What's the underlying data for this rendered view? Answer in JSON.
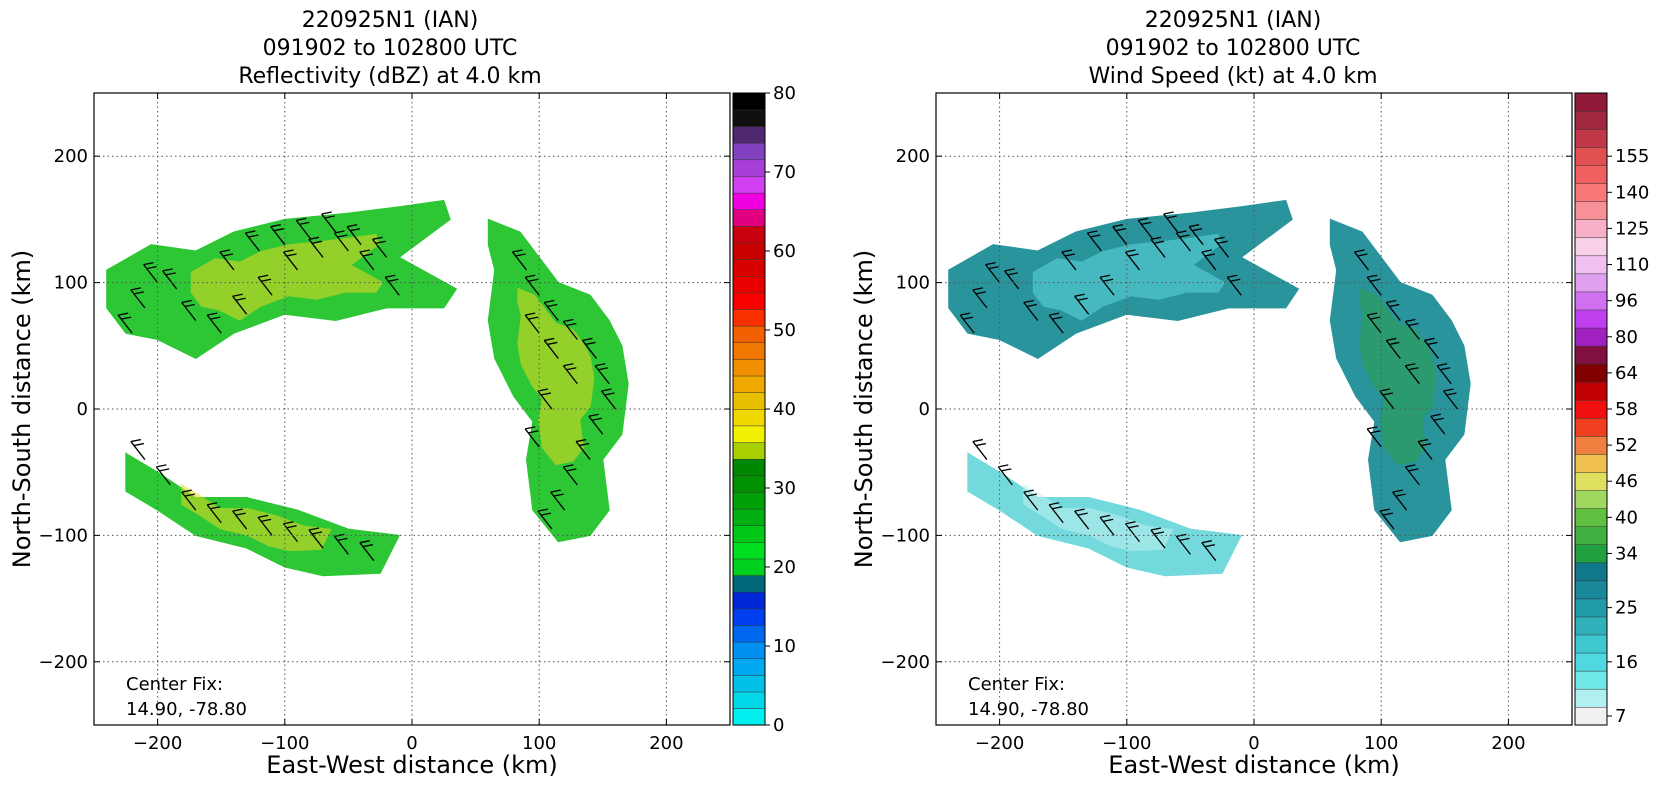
{
  "chart_data": [
    {
      "type": "heatmap",
      "title": [
        "220925N1 (IAN)",
        "091902 to 102800 UTC",
        "Reflectivity (dBZ) at 4.0 km"
      ],
      "xlabel": "East-West distance (km)",
      "ylabel": "North-South distance (km)",
      "xlim": [
        -250,
        250
      ],
      "ylim": [
        -250,
        250
      ],
      "xticks": [
        -200,
        -100,
        0,
        100,
        200
      ],
      "yticks": [
        -200,
        -100,
        0,
        100,
        200
      ],
      "xtick_labels": [
        "−200",
        "−100",
        "0",
        "100",
        "200"
      ],
      "ytick_labels": [
        "−200",
        "−100",
        "0",
        "100",
        "200"
      ],
      "grid": true,
      "annotation": [
        "Center Fix:",
        "14.90, -78.80"
      ],
      "colorbar": {
        "min": 0,
        "max": 80,
        "step": 2.5,
        "tick_values": [
          0,
          10,
          20,
          30,
          40,
          50,
          60,
          70,
          80
        ],
        "tick_labels": [
          "0",
          "10",
          "20",
          "30",
          "40",
          "50",
          "60",
          "70",
          "80"
        ],
        "colors": [
          "#00f0f0",
          "#00d8e8",
          "#00c0e8",
          "#00a8f0",
          "#0090f0",
          "#0068f0",
          "#0040f0",
          "#0028d8",
          "#006878",
          "#00d020",
          "#00e020",
          "#00c818",
          "#00b010",
          "#00a008",
          "#009000",
          "#008800",
          "#a8d000",
          "#f0f000",
          "#f0d800",
          "#e8c000",
          "#f0a800",
          "#f09000",
          "#f07800",
          "#f06000",
          "#f83000",
          "#f80000",
          "#e80000",
          "#d80000",
          "#c80000",
          "#c80010",
          "#e00080",
          "#f000e0",
          "#d040f0",
          "#a840d8",
          "#8040c0",
          "#502870",
          "#101010",
          "#000000"
        ]
      },
      "echo_regions": [
        {
          "name": "north band",
          "poly": [
            [
              -240,
              110
            ],
            [
              -205,
              130
            ],
            [
              -170,
              125
            ],
            [
              -140,
              140
            ],
            [
              -100,
              150
            ],
            [
              -50,
              155
            ],
            [
              -10,
              160
            ],
            [
              25,
              165
            ],
            [
              30,
              150
            ],
            [
              10,
              135
            ],
            [
              -10,
              120
            ],
            [
              35,
              95
            ],
            [
              25,
              80
            ],
            [
              -20,
              80
            ],
            [
              -60,
              70
            ],
            [
              -100,
              75
            ],
            [
              -140,
              60
            ],
            [
              -170,
              40
            ],
            [
              -200,
              55
            ],
            [
              -225,
              60
            ],
            [
              -240,
              80
            ]
          ],
          "fill": "#22c42a",
          "hot": "#e8d820"
        },
        {
          "name": "east band",
          "poly": [
            [
              60,
              150
            ],
            [
              85,
              140
            ],
            [
              100,
              120
            ],
            [
              115,
              100
            ],
            [
              140,
              90
            ],
            [
              155,
              70
            ],
            [
              165,
              50
            ],
            [
              170,
              20
            ],
            [
              165,
              -20
            ],
            [
              150,
              -40
            ],
            [
              155,
              -80
            ],
            [
              140,
              -100
            ],
            [
              115,
              -105
            ],
            [
              95,
              -80
            ],
            [
              90,
              -40
            ],
            [
              95,
              -10
            ],
            [
              80,
              10
            ],
            [
              65,
              40
            ],
            [
              60,
              70
            ],
            [
              65,
              110
            ],
            [
              60,
              130
            ]
          ],
          "fill": "#22c42a",
          "hot": "#e8d820"
        },
        {
          "name": "south band",
          "poly": [
            [
              -225,
              -35
            ],
            [
              -200,
              -50
            ],
            [
              -170,
              -70
            ],
            [
              -130,
              -70
            ],
            [
              -90,
              -80
            ],
            [
              -50,
              -95
            ],
            [
              -10,
              -100
            ],
            [
              -25,
              -130
            ],
            [
              -70,
              -132
            ],
            [
              -100,
              -125
            ],
            [
              -130,
              -110
            ],
            [
              -170,
              -100
            ],
            [
              -200,
              -80
            ],
            [
              -225,
              -65
            ]
          ],
          "fill": "#22c42a",
          "hot": "#e8d820"
        }
      ]
    },
    {
      "type": "heatmap",
      "title": [
        "220925N1 (IAN)",
        "091902 to 102800 UTC",
        "Wind Speed (kt) at 4.0 km"
      ],
      "xlabel": "East-West distance (km)",
      "ylabel": "North-South distance (km)",
      "xlim": [
        -250,
        250
      ],
      "ylim": [
        -250,
        250
      ],
      "xticks": [
        -200,
        -100,
        0,
        100,
        200
      ],
      "yticks": [
        -200,
        -100,
        0,
        100,
        200
      ],
      "xtick_labels": [
        "−200",
        "−100",
        "0",
        "100",
        "200"
      ],
      "ytick_labels": [
        "−200",
        "−100",
        "0",
        "100",
        "200"
      ],
      "grid": true,
      "annotation": [
        "Center Fix:",
        "14.90, -78.80"
      ],
      "colorbar": {
        "tick_labels": [
          "7",
          "16",
          "25",
          "34",
          "40",
          "46",
          "52",
          "58",
          "64",
          "80",
          "96",
          "110",
          "125",
          "140",
          "155"
        ],
        "tick_index": [
          0,
          3,
          6,
          9,
          11,
          13,
          15,
          17,
          19,
          21,
          23,
          25,
          27,
          29,
          31
        ],
        "colors": [
          "#f0f0f0",
          "#b0f0f0",
          "#70e8e8",
          "#50d8e0",
          "#40c8d0",
          "#30b0b8",
          "#209aa8",
          "#18889a",
          "#107888",
          "#20a040",
          "#40b040",
          "#60c040",
          "#a0d860",
          "#e0e060",
          "#f0c050",
          "#f08040",
          "#f04020",
          "#f01010",
          "#c00000",
          "#800000",
          "#801040",
          "#a020c0",
          "#c040f0",
          "#d070f0",
          "#e0a0f0",
          "#f0c0f0",
          "#f8d0e8",
          "#f8b0c8",
          "#f89098",
          "#f87878",
          "#f06060",
          "#e05050",
          "#c03848",
          "#a02840",
          "#901838"
        ]
      },
      "echo_regions": [
        {
          "name": "north band",
          "poly": [
            [
              -240,
              110
            ],
            [
              -205,
              130
            ],
            [
              -170,
              125
            ],
            [
              -140,
              140
            ],
            [
              -100,
              150
            ],
            [
              -50,
              155
            ],
            [
              -10,
              160
            ],
            [
              25,
              165
            ],
            [
              30,
              150
            ],
            [
              10,
              135
            ],
            [
              -10,
              120
            ],
            [
              35,
              95
            ],
            [
              25,
              80
            ],
            [
              -20,
              80
            ],
            [
              -60,
              70
            ],
            [
              -100,
              75
            ],
            [
              -140,
              60
            ],
            [
              -170,
              40
            ],
            [
              -200,
              55
            ],
            [
              -225,
              60
            ],
            [
              -240,
              80
            ]
          ],
          "fill": "#1e8f96",
          "hot": "#5ed6dc"
        },
        {
          "name": "east band",
          "poly": [
            [
              60,
              150
            ],
            [
              85,
              140
            ],
            [
              100,
              120
            ],
            [
              115,
              100
            ],
            [
              140,
              90
            ],
            [
              155,
              70
            ],
            [
              165,
              50
            ],
            [
              170,
              20
            ],
            [
              165,
              -20
            ],
            [
              150,
              -40
            ],
            [
              155,
              -80
            ],
            [
              140,
              -100
            ],
            [
              115,
              -105
            ],
            [
              95,
              -80
            ],
            [
              90,
              -40
            ],
            [
              95,
              -10
            ],
            [
              80,
              10
            ],
            [
              65,
              40
            ],
            [
              60,
              70
            ],
            [
              65,
              110
            ],
            [
              60,
              130
            ]
          ],
          "fill": "#1e8f96",
          "hot": "#2f9e4a"
        },
        {
          "name": "south band",
          "poly": [
            [
              -225,
              -35
            ],
            [
              -200,
              -50
            ],
            [
              -170,
              -70
            ],
            [
              -130,
              -70
            ],
            [
              -90,
              -80
            ],
            [
              -50,
              -95
            ],
            [
              -10,
              -100
            ],
            [
              -25,
              -130
            ],
            [
              -70,
              -132
            ],
            [
              -100,
              -125
            ],
            [
              -130,
              -110
            ],
            [
              -170,
              -100
            ],
            [
              -200,
              -80
            ],
            [
              -225,
              -65
            ]
          ],
          "fill": "#6cd8dc",
          "hot": "#bff0f0"
        }
      ]
    }
  ],
  "wind_barbs": [
    [
      -220,
      60
    ],
    [
      -210,
      80
    ],
    [
      -200,
      100
    ],
    [
      -185,
      95
    ],
    [
      -170,
      70
    ],
    [
      -150,
      60
    ],
    [
      -130,
      75
    ],
    [
      -110,
      90
    ],
    [
      -90,
      110
    ],
    [
      -70,
      120
    ],
    [
      -50,
      125
    ],
    [
      -30,
      110
    ],
    [
      -10,
      90
    ],
    [
      -140,
      110
    ],
    [
      -120,
      125
    ],
    [
      -100,
      130
    ],
    [
      -80,
      135
    ],
    [
      -60,
      140
    ],
    [
      -40,
      130
    ],
    [
      -20,
      120
    ],
    [
      90,
      110
    ],
    [
      100,
      90
    ],
    [
      115,
      70
    ],
    [
      130,
      55
    ],
    [
      145,
      40
    ],
    [
      155,
      20
    ],
    [
      160,
      0
    ],
    [
      150,
      -20
    ],
    [
      140,
      -40
    ],
    [
      130,
      -60
    ],
    [
      120,
      -80
    ],
    [
      110,
      -95
    ],
    [
      100,
      60
    ],
    [
      115,
      40
    ],
    [
      130,
      20
    ],
    [
      110,
      0
    ],
    [
      100,
      -30
    ],
    [
      -210,
      -40
    ],
    [
      -190,
      -60
    ],
    [
      -170,
      -80
    ],
    [
      -150,
      -90
    ],
    [
      -130,
      -95
    ],
    [
      -110,
      -100
    ],
    [
      -90,
      -105
    ],
    [
      -70,
      -110
    ],
    [
      -50,
      -115
    ],
    [
      -30,
      -120
    ]
  ]
}
